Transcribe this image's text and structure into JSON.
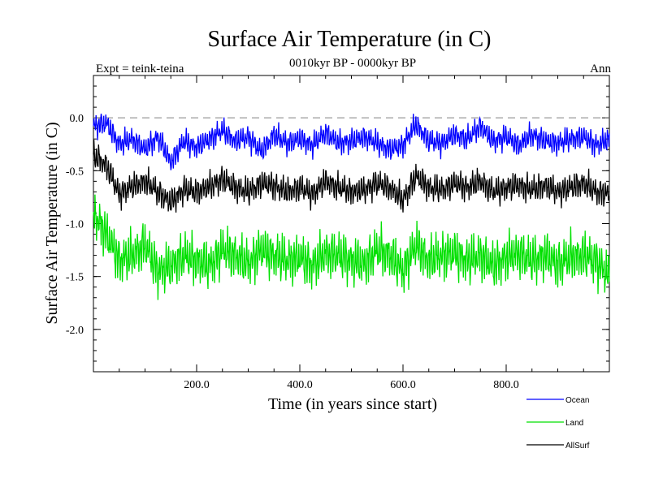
{
  "header": {
    "title": "Surface Air Temperature (in C)",
    "subtitle": "0010kyr BP - 0000kyr BP",
    "expt": "Expt = teink-teina",
    "season": "Ann"
  },
  "chart_data": {
    "type": "line",
    "title": "Surface Air Temperature (in C)",
    "subtitle": "0010kyr BP - 0000kyr BP",
    "xlabel": "Time (in years since start)",
    "ylabel": "Surface Air Temperature (in C)",
    "xlim": [
      0,
      1000
    ],
    "ylim": [
      -2.4,
      0.4
    ],
    "x_ticks": [
      200,
      400,
      600,
      800
    ],
    "x_tick_labels": [
      "200.0",
      "400.0",
      "600.0",
      "800.0"
    ],
    "y_ticks": [
      0.0,
      -0.5,
      -1.0,
      -1.5,
      -2.0
    ],
    "y_tick_labels": [
      "0.0",
      "-0.5",
      "-1.0",
      "-1.5",
      "-2.0"
    ],
    "reference_line": {
      "y": 0.0,
      "style": "dashed"
    },
    "legend_position": "bottom-right",
    "series": [
      {
        "name": "Ocean",
        "color": "#0000ff",
        "x": [
          0,
          25,
          50,
          75,
          100,
          125,
          150,
          175,
          200,
          225,
          250,
          275,
          300,
          325,
          350,
          375,
          400,
          425,
          450,
          475,
          500,
          525,
          550,
          575,
          600,
          625,
          650,
          675,
          700,
          725,
          750,
          775,
          800,
          825,
          850,
          875,
          900,
          925,
          950,
          975,
          1000
        ],
        "values": [
          -0.08,
          -0.05,
          -0.25,
          -0.2,
          -0.3,
          -0.18,
          -0.42,
          -0.22,
          -0.28,
          -0.2,
          -0.12,
          -0.22,
          -0.18,
          -0.32,
          -0.16,
          -0.24,
          -0.2,
          -0.26,
          -0.14,
          -0.24,
          -0.22,
          -0.18,
          -0.24,
          -0.3,
          -0.26,
          -0.06,
          -0.22,
          -0.24,
          -0.16,
          -0.2,
          -0.08,
          -0.22,
          -0.18,
          -0.26,
          -0.16,
          -0.22,
          -0.24,
          -0.2,
          -0.18,
          -0.26,
          -0.2
        ]
      },
      {
        "name": "Land",
        "color": "#00e000",
        "x": [
          0,
          25,
          50,
          75,
          100,
          125,
          150,
          175,
          200,
          225,
          250,
          275,
          300,
          325,
          350,
          375,
          400,
          425,
          450,
          475,
          500,
          525,
          550,
          575,
          600,
          625,
          650,
          675,
          700,
          725,
          750,
          775,
          800,
          825,
          850,
          875,
          900,
          925,
          950,
          975,
          1000
        ],
        "values": [
          -0.9,
          -1.1,
          -1.35,
          -1.3,
          -1.2,
          -1.45,
          -1.4,
          -1.3,
          -1.35,
          -1.4,
          -1.25,
          -1.3,
          -1.38,
          -1.25,
          -1.3,
          -1.35,
          -1.32,
          -1.4,
          -1.28,
          -1.3,
          -1.35,
          -1.38,
          -1.25,
          -1.3,
          -1.45,
          -1.2,
          -1.35,
          -1.3,
          -1.28,
          -1.35,
          -1.3,
          -1.4,
          -1.32,
          -1.28,
          -1.35,
          -1.3,
          -1.38,
          -1.32,
          -1.3,
          -1.36,
          -1.5
        ]
      },
      {
        "name": "AllSurf",
        "color": "#000000",
        "x": [
          0,
          25,
          50,
          75,
          100,
          125,
          150,
          175,
          200,
          225,
          250,
          275,
          300,
          325,
          350,
          375,
          400,
          425,
          450,
          475,
          500,
          525,
          550,
          575,
          600,
          625,
          650,
          675,
          700,
          725,
          750,
          775,
          800,
          825,
          850,
          875,
          900,
          925,
          950,
          975,
          1000
        ],
        "values": [
          -0.35,
          -0.45,
          -0.72,
          -0.65,
          -0.6,
          -0.7,
          -0.8,
          -0.68,
          -0.7,
          -0.65,
          -0.58,
          -0.66,
          -0.7,
          -0.62,
          -0.64,
          -0.7,
          -0.66,
          -0.72,
          -0.6,
          -0.66,
          -0.7,
          -0.68,
          -0.62,
          -0.66,
          -0.78,
          -0.55,
          -0.66,
          -0.68,
          -0.62,
          -0.66,
          -0.6,
          -0.7,
          -0.66,
          -0.64,
          -0.68,
          -0.64,
          -0.7,
          -0.66,
          -0.62,
          -0.7,
          -0.72
        ]
      }
    ]
  }
}
